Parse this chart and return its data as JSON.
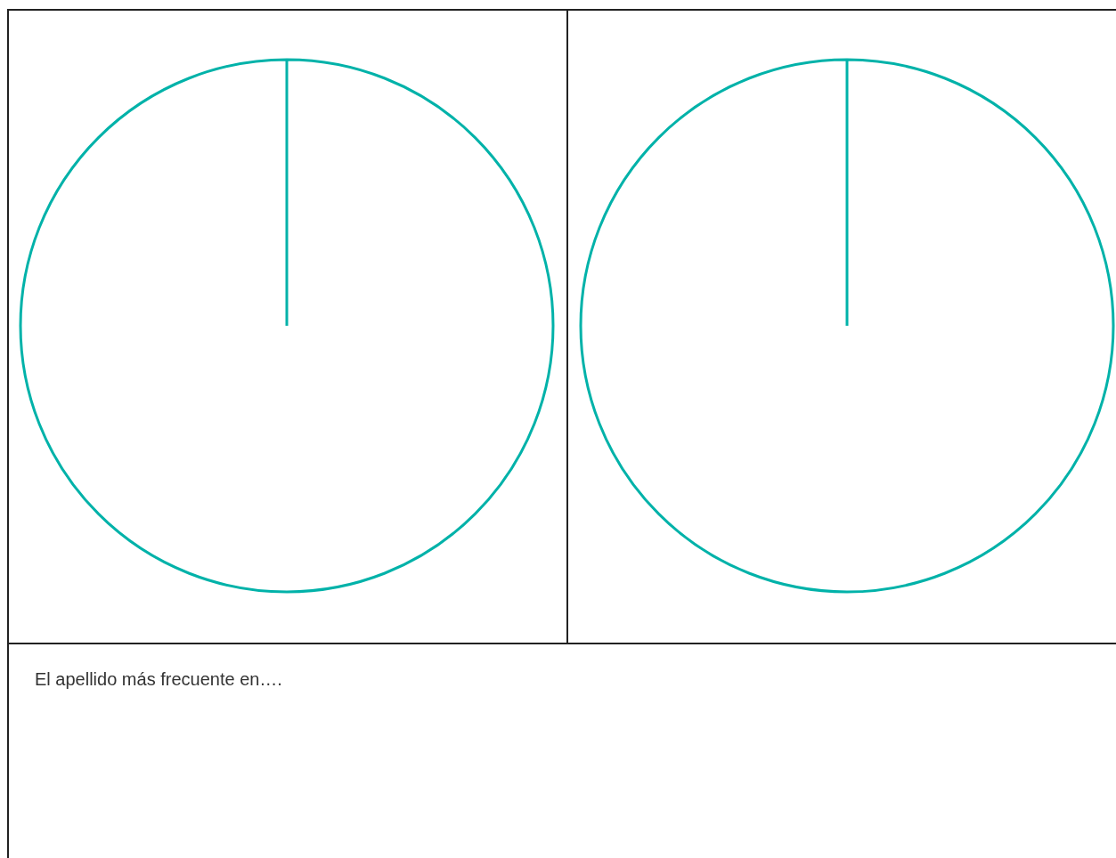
{
  "chart_data": [
    {
      "type": "pie",
      "categories": [
        null
      ],
      "values": [
        100
      ],
      "colors": [
        "#00b2a9"
      ]
    },
    {
      "type": "pie",
      "categories": [
        null
      ],
      "values": [
        100
      ],
      "colors": [
        "#00b2a9"
      ]
    },
    {
      "type": "other",
      "annotations": [
        "El apellido más frecuente en…."
      ]
    }
  ]
}
